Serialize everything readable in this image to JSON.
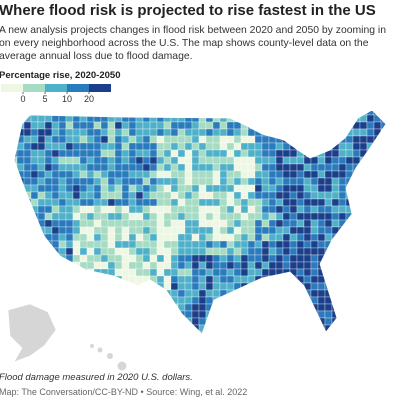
{
  "header": {
    "title": "Where flood risk is projected to rise fastest in the US",
    "description": "A new analysis projects changes in flood risk between 2020 and 2050 by zooming in on every neighborhood across the U.S. The map shows county-level data on the average annual loss due to flood damage."
  },
  "legend": {
    "title": "Percentage rise, 2020-2050",
    "colors": [
      "#eef7e4",
      "#a6dcc4",
      "#4fb0c9",
      "#2a7bbd",
      "#1b3f8b"
    ],
    "ticks": [
      0,
      5,
      10,
      20
    ]
  },
  "footer": {
    "note": "Flood damage measured in 2020 U.S. dollars.",
    "source": "Map: The Conversation/CC-BY-ND • Source: Wing, et al. 2022"
  }
}
